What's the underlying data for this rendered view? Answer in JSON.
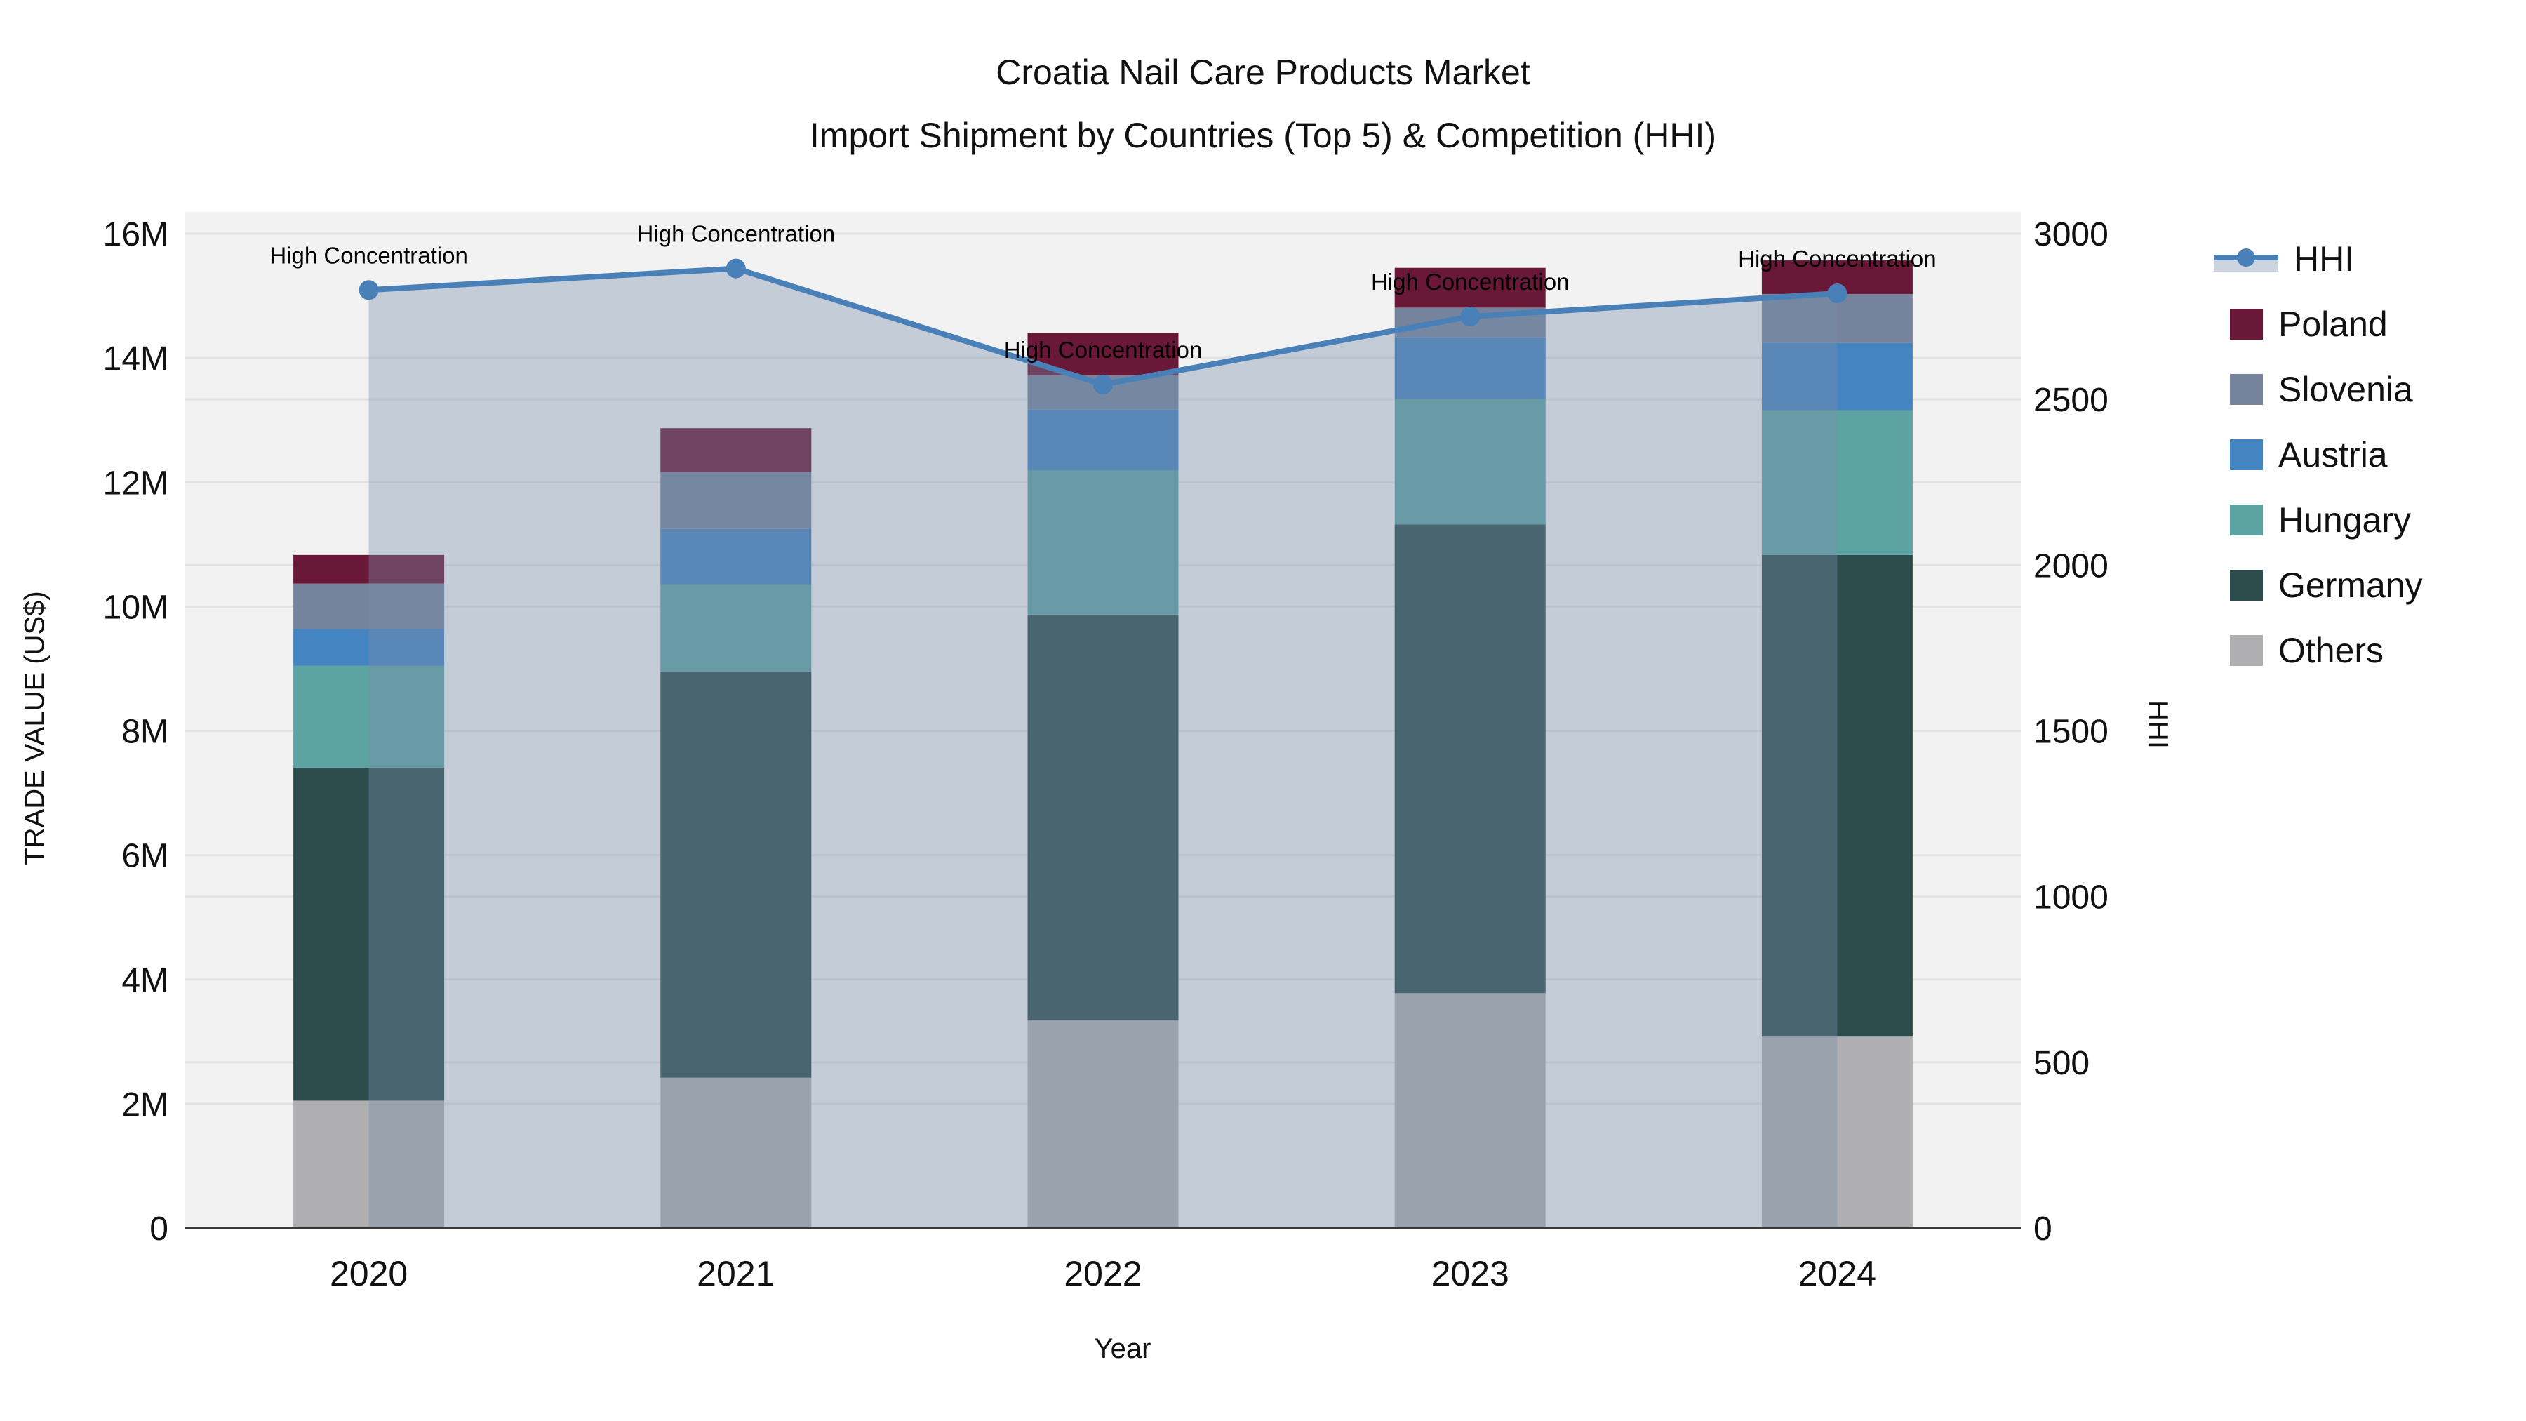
{
  "title": {
    "line1": "Croatia Nail Care Products Market",
    "line2": "Import Shipment by Countries (Top 5) & Competition (HHI)"
  },
  "axes": {
    "x_label": "Year",
    "y_left_label": "TRADE VALUE (US$)",
    "y_right_label": "HHI",
    "y_left_max_musd": 16,
    "y_right_max": 3000,
    "y_left_ticks": [
      {
        "v": 0,
        "label": "0"
      },
      {
        "v": 2,
        "label": "2M"
      },
      {
        "v": 4,
        "label": "4M"
      },
      {
        "v": 6,
        "label": "6M"
      },
      {
        "v": 8,
        "label": "8M"
      },
      {
        "v": 10,
        "label": "10M"
      },
      {
        "v": 12,
        "label": "12M"
      },
      {
        "v": 14,
        "label": "14M"
      },
      {
        "v": 16,
        "label": "16M"
      }
    ],
    "y_right_ticks": [
      {
        "v": 0,
        "label": "0"
      },
      {
        "v": 500,
        "label": "500"
      },
      {
        "v": 1000,
        "label": "1000"
      },
      {
        "v": 1500,
        "label": "1500"
      },
      {
        "v": 2000,
        "label": "2000"
      },
      {
        "v": 2500,
        "label": "2500"
      },
      {
        "v": 3000,
        "label": "3000"
      }
    ]
  },
  "chart_data": {
    "type": "combo: stacked-bar (left axis) + line with area fill (right axis)",
    "categories": [
      "2020",
      "2021",
      "2022",
      "2023",
      "2024"
    ],
    "bar_unit": "million US$",
    "series": [
      {
        "name": "Others",
        "color": "#AFAFB1",
        "values": [
          2.05,
          2.42,
          3.35,
          3.78,
          3.08
        ]
      },
      {
        "name": "Germany",
        "color": "#2C4C4C",
        "values": [
          5.36,
          6.53,
          6.52,
          7.54,
          7.75
        ]
      },
      {
        "name": "Hungary",
        "color": "#5EA3A3",
        "values": [
          1.64,
          1.41,
          2.32,
          2.02,
          2.33
        ]
      },
      {
        "name": "Austria",
        "color": "#4484C0",
        "values": [
          0.59,
          0.89,
          0.98,
          0.99,
          1.08
        ]
      },
      {
        "name": "Slovenia",
        "color": "#75849C",
        "values": [
          0.73,
          0.91,
          0.55,
          0.48,
          0.79
        ]
      },
      {
        "name": "Poland",
        "color": "#691837",
        "values": [
          0.46,
          0.71,
          0.68,
          0.64,
          0.54
        ]
      }
    ],
    "bar_totals_musd": [
      10.83,
      12.87,
      14.4,
      15.45,
      15.57
    ],
    "line_series": {
      "name": "HHI",
      "axis": "right",
      "values": [
        2830,
        2895,
        2545,
        2750,
        2820
      ],
      "color": "#4A80B8",
      "fill_color": "rgba(122,142,172,0.38)"
    },
    "annotation_text": "High Concentration",
    "annotation_points": [
      0,
      1,
      2,
      3,
      4
    ],
    "legend": [
      {
        "label": "HHI",
        "type": "line",
        "color": "#4A80B8"
      },
      {
        "label": "Poland",
        "type": "swatch",
        "color": "#691837"
      },
      {
        "label": "Slovenia",
        "type": "swatch",
        "color": "#75849C"
      },
      {
        "label": "Austria",
        "type": "swatch",
        "color": "#4484C0"
      },
      {
        "label": "Hungary",
        "type": "swatch",
        "color": "#5EA3A3"
      },
      {
        "label": "Germany",
        "type": "swatch",
        "color": "#2C4C4C"
      },
      {
        "label": "Others",
        "type": "swatch",
        "color": "#AFAFB1"
      }
    ],
    "layout_colors": {
      "plot_background": "#F2F2F2",
      "gridline": "#E2E2E2",
      "axis_line": "#383838",
      "text": "#111111"
    },
    "legend_position": "right",
    "grid": true
  }
}
